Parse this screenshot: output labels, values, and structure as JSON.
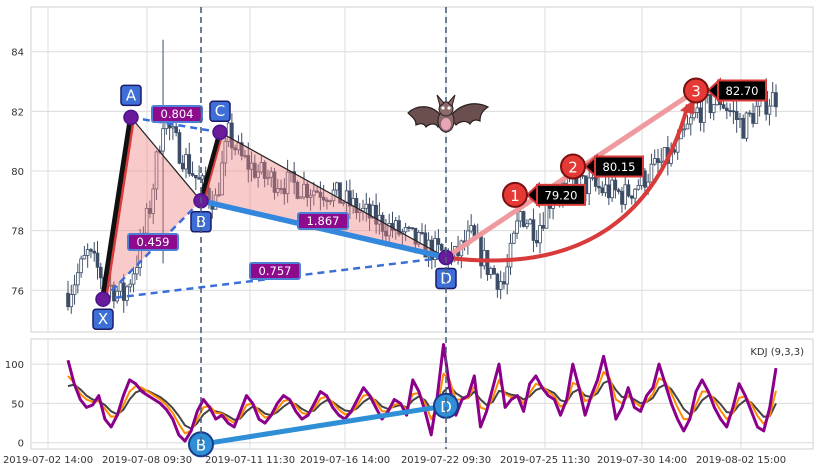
{
  "chart_data": [
    {
      "type": "candlestick",
      "ylim": [
        74.6,
        85.5
      ],
      "yticks": [
        76,
        78,
        80,
        82,
        84
      ],
      "grid": true,
      "price": {
        "start": 75.9,
        "anchors": [
          [
            0,
            75.9
          ],
          [
            6,
            77.2
          ],
          [
            12,
            76.2
          ],
          [
            17,
            75.8
          ],
          [
            21,
            77.0
          ],
          [
            25,
            78.8
          ],
          [
            29,
            81.8
          ],
          [
            34,
            80.7
          ],
          [
            40,
            79.6
          ],
          [
            45,
            79.0
          ],
          [
            49,
            81.2
          ],
          [
            53,
            80.4
          ],
          [
            60,
            79.8
          ],
          [
            70,
            79.5
          ],
          [
            80,
            79.3
          ],
          [
            90,
            78.6
          ],
          [
            100,
            78.0
          ],
          [
            110,
            77.4
          ],
          [
            118,
            77.1
          ],
          [
            123,
            77.8
          ],
          [
            128,
            76.8
          ],
          [
            133,
            76.2
          ],
          [
            138,
            78.6
          ],
          [
            143,
            78.0
          ],
          [
            148,
            79.3
          ],
          [
            155,
            79.6
          ],
          [
            162,
            79.4
          ],
          [
            170,
            79.2
          ],
          [
            178,
            80.0
          ],
          [
            185,
            80.6
          ],
          [
            192,
            82.0
          ],
          [
            199,
            82.4
          ],
          [
            206,
            81.5
          ],
          [
            211,
            82.2
          ],
          [
            216,
            82.5
          ]
        ],
        "count": 217
      },
      "harmonic": {
        "points": [
          {
            "name": "X",
            "value": 75.7
          },
          {
            "name": "A",
            "value": 81.8
          },
          {
            "name": "B",
            "value": 79.0
          },
          {
            "name": "C",
            "value": 81.3
          },
          {
            "name": "D",
            "value": 77.1
          }
        ],
        "ratios": [
          "0.804",
          "0.459",
          "1.867",
          "0.757"
        ],
        "targets": [
          {
            "label": "1",
            "value": "79.20"
          },
          {
            "label": "2",
            "value": "80.15"
          },
          {
            "label": "3",
            "value": "82.70"
          }
        ]
      }
    },
    {
      "type": "line",
      "title": "KDJ (9,3,3)",
      "ylim": [
        -8,
        132
      ],
      "yticks": [
        0,
        50,
        100
      ],
      "x_tick_labels": [
        "2019-07-02 14:00",
        "2019-07-08 09:30",
        "2019-07-11 11:30",
        "2019-07-16 14:00",
        "2019-07-22 09:30",
        "2019-07-25 11:30",
        "2019-07-30 14:00",
        "2019-08-02 15:00"
      ],
      "series": [
        {
          "color": "#8b008b",
          "values": [
            105,
            75,
            55,
            45,
            48,
            60,
            30,
            20,
            35,
            60,
            80,
            75,
            65,
            60,
            55,
            50,
            42,
            30,
            10,
            2,
            15,
            40,
            55,
            45,
            30,
            35,
            25,
            20,
            40,
            60,
            50,
            30,
            25,
            35,
            50,
            60,
            55,
            40,
            30,
            35,
            50,
            65,
            60,
            45,
            35,
            30,
            40,
            55,
            70,
            60,
            45,
            30,
            40,
            55,
            50,
            35,
            80,
            65,
            40,
            10,
            60,
            125,
            70,
            35,
            55,
            60,
            85,
            20,
            40,
            70,
            100,
            45,
            55,
            60,
            40,
            75,
            85,
            70,
            60,
            55,
            35,
            55,
            100,
            70,
            35,
            60,
            80,
            110,
            75,
            30,
            45,
            70,
            45,
            40,
            60,
            70,
            100,
            75,
            50,
            30,
            15,
            30,
            65,
            80,
            65,
            45,
            30,
            20,
            45,
            75,
            60,
            40,
            20,
            15,
            45,
            95
          ]
        },
        {
          "color": "#ff8c00",
          "values": [
            85,
            76,
            62,
            55,
            52,
            53,
            43,
            33,
            34,
            48,
            65,
            72,
            70,
            65,
            60,
            55,
            48,
            38,
            24,
            12,
            15,
            30,
            45,
            47,
            38,
            37,
            30,
            25,
            33,
            48,
            50,
            40,
            32,
            34,
            43,
            53,
            55,
            47,
            38,
            36,
            44,
            56,
            59,
            51,
            42,
            36,
            38,
            48,
            60,
            61,
            52,
            40,
            40,
            48,
            50,
            42,
            62,
            63,
            50,
            30,
            45,
            88,
            79,
            55,
            55,
            57,
            72,
            45,
            42,
            57,
            80,
            62,
            58,
            59,
            50,
            63,
            75,
            72,
            65,
            59,
            46,
            50,
            76,
            73,
            53,
            56,
            69,
            90,
            82,
            55,
            50,
            60,
            52,
            46,
            53,
            62,
            82,
            78,
            63,
            45,
            30,
            30,
            48,
            65,
            65,
            54,
            41,
            30,
            38,
            57,
            59,
            49,
            34,
            24,
            35,
            66
          ]
        },
        {
          "color": "#444444",
          "values": [
            72,
            74,
            68,
            60,
            55,
            53,
            48,
            40,
            36,
            42,
            55,
            64,
            67,
            66,
            62,
            58,
            52,
            44,
            34,
            22,
            18,
            25,
            36,
            42,
            40,
            38,
            34,
            29,
            31,
            40,
            46,
            43,
            37,
            35,
            39,
            46,
            51,
            49,
            43,
            39,
            41,
            49,
            54,
            52,
            46,
            41,
            40,
            44,
            52,
            57,
            54,
            46,
            43,
            46,
            48,
            45,
            54,
            59,
            54,
            42,
            43,
            65,
            72,
            63,
            58,
            57,
            65,
            55,
            48,
            52,
            66,
            64,
            61,
            60,
            55,
            59,
            67,
            70,
            67,
            63,
            54,
            52,
            64,
            68,
            60,
            58,
            63,
            76,
            79,
            67,
            58,
            59,
            55,
            50,
            52,
            57,
            70,
            74,
            68,
            56,
            43,
            36,
            42,
            54,
            60,
            57,
            49,
            39,
            38,
            48,
            54,
            51,
            42,
            33,
            34,
            50
          ]
        }
      ],
      "markers": [
        {
          "name": "B",
          "value": -2
        },
        {
          "name": "D",
          "value": 47
        }
      ]
    }
  ]
}
